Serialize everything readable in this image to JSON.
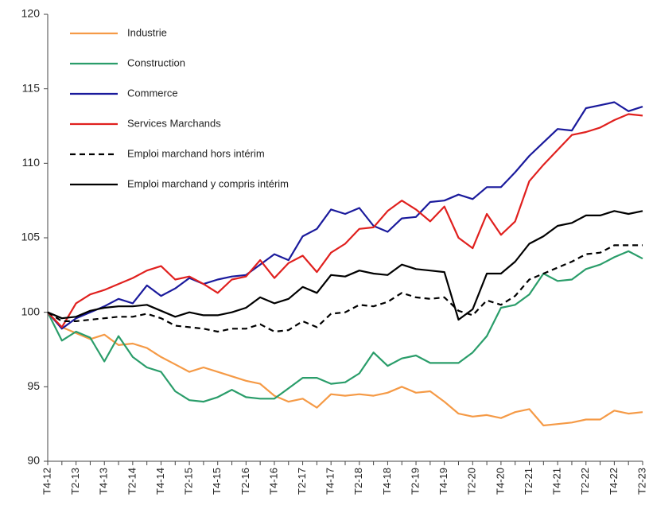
{
  "chart_data": {
    "type": "line",
    "categories": [
      "T4-12",
      null,
      "T2-13",
      null,
      "T4-13",
      null,
      "T2-14",
      null,
      "T4-14",
      null,
      "T2-15",
      null,
      "T4-15",
      null,
      "T2-16",
      null,
      "T4-16",
      null,
      "T2-17",
      null,
      "T4-17",
      null,
      "T2-18",
      null,
      "T4-18",
      null,
      "T2-19",
      null,
      "T4-19",
      null,
      "T2-20",
      null,
      "T4-20",
      null,
      "T2-21",
      null,
      "T4-21",
      null,
      "T2-22",
      null,
      "T4-22",
      null,
      "T2-23"
    ],
    "ylim": [
      90,
      120
    ],
    "yticks": [
      90,
      95,
      100,
      105,
      110,
      115,
      120
    ],
    "grid": false,
    "legend": "top-left",
    "series": [
      {
        "name": "Industrie",
        "color": "#f59a46",
        "values": [
          100,
          99.0,
          98.6,
          98.2,
          98.5,
          97.8,
          97.9,
          97.6,
          97.0,
          96.5,
          96.0,
          96.3,
          96.0,
          95.7,
          95.4,
          95.2,
          94.4,
          94.0,
          94.2,
          93.6,
          94.5,
          94.4,
          94.5,
          94.4,
          94.6,
          95.0,
          94.6,
          94.7,
          94.0,
          93.2,
          93.0,
          93.1,
          92.9,
          93.3,
          93.5,
          92.4,
          92.5,
          92.6,
          92.8,
          92.8,
          93.4,
          93.2,
          93.3
        ]
      },
      {
        "name": "Construction",
        "color": "#2a9d6a",
        "values": [
          100,
          98.1,
          98.7,
          98.3,
          96.7,
          98.4,
          97.0,
          96.3,
          96.0,
          94.7,
          94.1,
          94.0,
          94.3,
          94.8,
          94.3,
          94.2,
          94.2,
          94.9,
          95.6,
          95.6,
          95.2,
          95.3,
          95.9,
          97.3,
          96.4,
          96.9,
          97.1,
          96.6,
          96.6,
          96.6,
          97.3,
          98.4,
          100.3,
          100.5,
          101.2,
          102.6,
          102.1,
          102.2,
          102.9,
          103.2,
          103.7,
          104.1,
          103.6
        ]
      },
      {
        "name": "Commerce",
        "color": "#1a1a9c",
        "values": [
          100,
          98.9,
          99.6,
          100.0,
          100.4,
          100.9,
          100.6,
          101.8,
          101.1,
          101.6,
          102.3,
          101.9,
          102.2,
          102.4,
          102.5,
          103.2,
          103.9,
          103.5,
          105.1,
          105.6,
          106.9,
          106.6,
          107.0,
          105.8,
          105.4,
          106.3,
          106.4,
          107.4,
          107.5,
          107.9,
          107.6,
          108.4,
          108.4,
          109.4,
          110.5,
          111.4,
          112.3,
          112.2,
          113.7,
          113.9,
          114.1,
          113.5,
          113.8
        ]
      },
      {
        "name": "Services Marchands",
        "color": "#e0201e",
        "values": [
          100,
          99.0,
          100.6,
          101.2,
          101.5,
          101.9,
          102.3,
          102.8,
          103.1,
          102.2,
          102.4,
          101.9,
          101.3,
          102.2,
          102.4,
          103.5,
          102.3,
          103.3,
          103.8,
          102.7,
          104.0,
          104.6,
          105.6,
          105.7,
          106.8,
          107.5,
          106.9,
          106.1,
          107.1,
          105.0,
          104.3,
          106.6,
          105.2,
          106.1,
          108.8,
          109.9,
          110.9,
          111.9,
          112.1,
          112.4,
          112.9,
          113.3,
          113.2
        ]
      },
      {
        "name": "Emploi marchand hors intérim",
        "color": "#000000",
        "dash": true,
        "values": [
          100,
          99.4,
          99.4,
          99.5,
          99.6,
          99.7,
          99.7,
          99.9,
          99.6,
          99.1,
          99.0,
          98.9,
          98.7,
          98.9,
          98.9,
          99.2,
          98.7,
          98.8,
          99.4,
          99.0,
          99.9,
          100.0,
          100.5,
          100.4,
          100.7,
          101.3,
          101.0,
          100.9,
          101.0,
          100.1,
          99.8,
          100.8,
          100.5,
          101.1,
          102.2,
          102.6,
          103.0,
          103.4,
          103.9,
          104.0,
          104.5,
          104.5,
          104.5
        ]
      },
      {
        "name": "Emploi marchand y compris intérim",
        "color": "#000000",
        "values": [
          100,
          99.6,
          99.7,
          100.1,
          100.3,
          100.4,
          100.4,
          100.5,
          100.1,
          99.7,
          100.0,
          99.8,
          99.8,
          100.0,
          100.3,
          101.0,
          100.6,
          100.9,
          101.7,
          101.3,
          102.5,
          102.4,
          102.8,
          102.6,
          102.5,
          103.2,
          102.9,
          102.8,
          102.7,
          99.5,
          100.2,
          102.6,
          102.6,
          103.4,
          104.6,
          105.1,
          105.8,
          106.0,
          106.5,
          106.5,
          106.8,
          106.6,
          106.8
        ]
      }
    ]
  }
}
